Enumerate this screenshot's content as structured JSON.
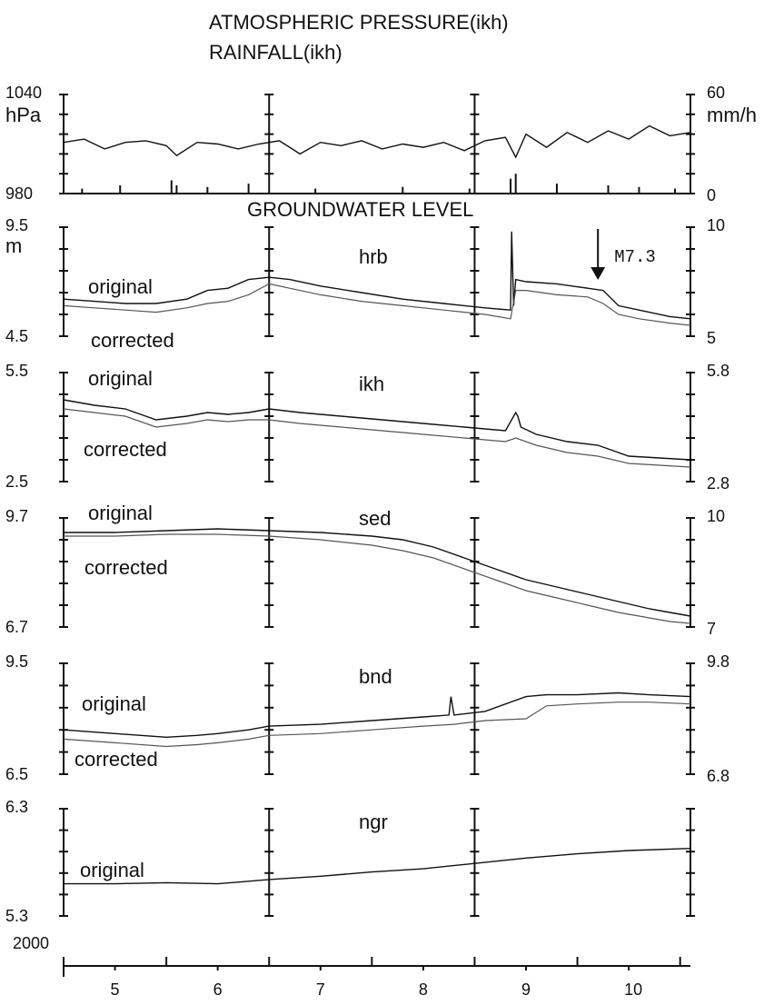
{
  "chart_data": {
    "title_lines": [
      "ATMOSPHERIC PRESSURE(ikh)",
      "RAINFALL(ikh)"
    ],
    "section_title": "GROUNDWATER LEVEL",
    "year_label": "2000",
    "months": [
      "5",
      "6",
      "7",
      "8",
      "9",
      "10"
    ],
    "event": {
      "label": "M7.3",
      "panel": "hrb",
      "month": 9.7
    },
    "panels": [
      {
        "id": "pressure",
        "type": "line",
        "left_unit": "hPa",
        "right_unit": "mm/h",
        "ylim": [
          980,
          1040
        ],
        "ylim_right": [
          0,
          60
        ],
        "ytick_labels": [
          "1040",
          "980"
        ],
        "ytick_labels_right": [
          "60",
          "0"
        ],
        "series": [
          {
            "key": "pressure",
            "axis": "left",
            "x": [
              4.5,
              4.7,
              4.9,
              5.1,
              5.3,
              5.5,
              5.6,
              5.8,
              6.0,
              6.2,
              6.4,
              6.6,
              6.8,
              7.0,
              7.2,
              7.4,
              7.6,
              7.8,
              8.0,
              8.2,
              8.4,
              8.6,
              8.8,
              8.9,
              9.0,
              9.2,
              9.4,
              9.6,
              9.8,
              10.0,
              10.2,
              10.4,
              10.6
            ],
            "y": [
              1011,
              1013,
              1007,
              1011,
              1012,
              1009,
              1003,
              1011,
              1010,
              1007,
              1010,
              1012,
              1004,
              1011,
              1009,
              1012,
              1007,
              1010,
              1008,
              1011,
              1006,
              1012,
              1014,
              1002,
              1016,
              1008,
              1017,
              1011,
              1018,
              1013,
              1021,
              1015,
              1017
            ]
          }
        ],
        "rain_bars": [
          [
            4.68,
            3
          ],
          [
            5.05,
            5
          ],
          [
            5.55,
            8
          ],
          [
            5.6,
            5
          ],
          [
            5.9,
            4
          ],
          [
            6.3,
            6
          ],
          [
            6.95,
            3
          ],
          [
            7.8,
            4
          ],
          [
            8.45,
            3
          ],
          [
            8.85,
            9
          ],
          [
            8.9,
            12
          ],
          [
            9.3,
            6
          ],
          [
            9.8,
            5
          ],
          [
            10.1,
            4
          ],
          [
            10.45,
            3
          ]
        ]
      },
      {
        "id": "hrb",
        "type": "line",
        "name": "hrb",
        "ylim": [
          4.5,
          9.5
        ],
        "ylim_right": [
          5,
          10
        ],
        "ytick_labels": [
          "9.5",
          "4.5"
        ],
        "ytick_labels_right": [
          "10",
          "5"
        ],
        "left_unit": "m",
        "labels": [
          "original",
          "corrected"
        ],
        "series": [
          {
            "key": "original",
            "x": [
              4.5,
              4.8,
              5.1,
              5.4,
              5.7,
              5.9,
              6.1,
              6.3,
              6.5,
              6.7,
              7.0,
              7.4,
              7.8,
              8.2,
              8.6,
              8.85,
              8.86,
              8.88,
              8.9,
              9.0,
              9.3,
              9.6,
              9.75,
              9.9,
              10.1,
              10.4,
              10.6
            ],
            "y": [
              6.2,
              6.1,
              6.0,
              6.0,
              6.2,
              6.6,
              6.7,
              7.1,
              7.2,
              7.1,
              6.8,
              6.5,
              6.2,
              6.0,
              5.8,
              5.7,
              9.3,
              5.9,
              7.1,
              7.0,
              6.9,
              6.7,
              6.6,
              5.9,
              5.7,
              5.4,
              5.3
            ]
          },
          {
            "key": "corrected",
            "x": [
              4.5,
              4.8,
              5.1,
              5.4,
              5.7,
              5.9,
              6.1,
              6.3,
              6.5,
              6.7,
              7.0,
              7.4,
              7.8,
              8.2,
              8.6,
              8.85,
              8.9,
              9.0,
              9.3,
              9.6,
              9.75,
              9.9,
              10.1,
              10.4,
              10.6
            ],
            "y": [
              5.9,
              5.8,
              5.7,
              5.6,
              5.8,
              6.0,
              6.1,
              6.4,
              6.9,
              6.7,
              6.4,
              6.1,
              5.9,
              5.7,
              5.5,
              5.3,
              6.6,
              6.6,
              6.4,
              6.3,
              6.0,
              5.5,
              5.3,
              5.1,
              5.0
            ]
          }
        ]
      },
      {
        "id": "ikh",
        "type": "line",
        "name": "ikh",
        "ylim": [
          2.5,
          5.5
        ],
        "ylim_right": [
          2.8,
          5.8
        ],
        "ytick_labels": [
          "5.5",
          "2.5"
        ],
        "ytick_labels_right": [
          "5.8",
          "2.8"
        ],
        "labels": [
          "original",
          "corrected"
        ],
        "series": [
          {
            "key": "original",
            "x": [
              4.5,
              4.8,
              5.1,
              5.4,
              5.7,
              5.9,
              6.1,
              6.3,
              6.5,
              6.8,
              7.2,
              7.6,
              8.0,
              8.4,
              8.8,
              8.9,
              8.92,
              8.95,
              9.1,
              9.4,
              9.7,
              10.0,
              10.3,
              10.6
            ],
            "y": [
              4.75,
              4.6,
              4.5,
              4.2,
              4.3,
              4.4,
              4.35,
              4.4,
              4.5,
              4.4,
              4.3,
              4.2,
              4.1,
              4.0,
              3.9,
              4.4,
              4.3,
              4.0,
              3.8,
              3.6,
              3.5,
              3.2,
              3.15,
              3.1
            ]
          },
          {
            "key": "corrected",
            "x": [
              4.5,
              4.8,
              5.1,
              5.4,
              5.7,
              5.9,
              6.1,
              6.3,
              6.5,
              6.8,
              7.2,
              7.6,
              8.0,
              8.4,
              8.8,
              8.9,
              9.1,
              9.4,
              9.7,
              10.0,
              10.3,
              10.6
            ],
            "y": [
              4.5,
              4.4,
              4.3,
              4.0,
              4.1,
              4.2,
              4.15,
              4.2,
              4.2,
              4.1,
              4.0,
              3.9,
              3.8,
              3.7,
              3.6,
              3.7,
              3.5,
              3.3,
              3.2,
              3.0,
              2.95,
              2.9
            ]
          }
        ]
      },
      {
        "id": "sed",
        "type": "line",
        "name": "sed",
        "ylim": [
          6.7,
          9.7
        ],
        "ylim_right": [
          7,
          10
        ],
        "ytick_labels": [
          "9.7",
          "6.7"
        ],
        "ytick_labels_right": [
          "10",
          "7"
        ],
        "labels": [
          "original",
          "corrected"
        ],
        "series": [
          {
            "key": "original",
            "x": [
              4.5,
              5.0,
              5.5,
              6.0,
              6.5,
              7.0,
              7.5,
              7.8,
              8.1,
              8.4,
              8.7,
              9.0,
              9.3,
              9.6,
              9.9,
              10.2,
              10.4,
              10.6
            ],
            "y": [
              9.3,
              9.3,
              9.35,
              9.4,
              9.35,
              9.3,
              9.2,
              9.1,
              8.9,
              8.6,
              8.3,
              8.0,
              7.8,
              7.6,
              7.4,
              7.2,
              7.1,
              7.0
            ]
          },
          {
            "key": "corrected",
            "x": [
              4.5,
              5.0,
              5.5,
              6.0,
              6.5,
              7.0,
              7.5,
              7.8,
              8.1,
              8.4,
              8.7,
              9.0,
              9.3,
              9.6,
              9.9,
              10.2,
              10.4,
              10.6
            ],
            "y": [
              9.2,
              9.2,
              9.25,
              9.25,
              9.2,
              9.1,
              8.95,
              8.8,
              8.6,
              8.3,
              8.0,
              7.7,
              7.5,
              7.3,
              7.1,
              6.95,
              6.85,
              6.8
            ]
          }
        ]
      },
      {
        "id": "bnd",
        "type": "line",
        "name": "bnd",
        "ylim": [
          6.5,
          9.5
        ],
        "ylim_right": [
          6.8,
          9.8
        ],
        "ytick_labels": [
          "9.5",
          "6.5"
        ],
        "ytick_labels_right": [
          "9.8",
          "6.8"
        ],
        "labels": [
          "original",
          "corrected"
        ],
        "series": [
          {
            "key": "original",
            "x": [
              4.5,
              5.0,
              5.5,
              5.8,
              6.0,
              6.3,
              6.5,
              7.0,
              7.5,
              8.0,
              8.25,
              8.27,
              8.3,
              8.6,
              9.0,
              9.2,
              9.5,
              9.9,
              10.2,
              10.6
            ],
            "y": [
              7.7,
              7.6,
              7.5,
              7.55,
              7.6,
              7.7,
              7.8,
              7.85,
              7.95,
              8.05,
              8.1,
              8.6,
              8.1,
              8.2,
              8.6,
              8.65,
              8.65,
              8.7,
              8.65,
              8.6
            ]
          },
          {
            "key": "corrected",
            "x": [
              4.5,
              5.0,
              5.5,
              5.8,
              6.0,
              6.3,
              6.5,
              7.0,
              7.5,
              8.0,
              8.3,
              8.6,
              9.0,
              9.2,
              9.5,
              9.9,
              10.2,
              10.6
            ],
            "y": [
              7.45,
              7.35,
              7.25,
              7.3,
              7.35,
              7.45,
              7.55,
              7.6,
              7.7,
              7.8,
              7.85,
              7.95,
              8.0,
              8.35,
              8.4,
              8.45,
              8.45,
              8.4
            ]
          }
        ]
      },
      {
        "id": "ngr",
        "type": "line",
        "name": "ngr",
        "ylim": [
          5.3,
          6.3
        ],
        "ytick_labels": [
          "6.3",
          "5.3"
        ],
        "labels": [
          "original"
        ],
        "series": [
          {
            "key": "original",
            "x": [
              4.5,
              5.0,
              5.5,
              6.0,
              6.5,
              7.0,
              7.5,
              8.0,
              8.5,
              9.0,
              9.5,
              10.0,
              10.6
            ],
            "y": [
              5.6,
              5.6,
              5.61,
              5.6,
              5.64,
              5.67,
              5.71,
              5.74,
              5.79,
              5.84,
              5.88,
              5.91,
              5.93
            ]
          }
        ]
      }
    ]
  }
}
